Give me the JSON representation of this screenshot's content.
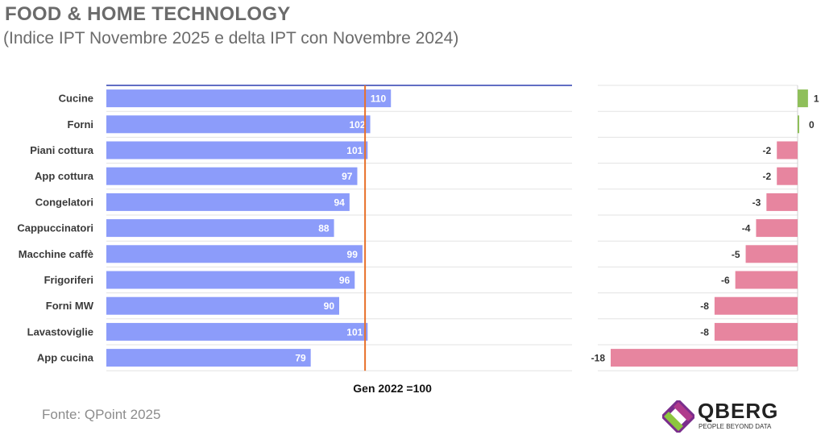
{
  "header": {
    "title": "FOOD & HOME TECHNOLOGY",
    "subtitle": "(Indice IPT Novembre 2025 e delta IPT con Novembre 2024)"
  },
  "footer": {
    "source": "Fonte: QPoint 2025"
  },
  "logo": {
    "name": "QBERG",
    "tagline": "PEOPLE BEYOND DATA"
  },
  "chart_data": [
    {
      "type": "bar",
      "orientation": "horizontal",
      "categories": [
        "Cucine",
        "Forni",
        "Piani cottura",
        "App cottura",
        "Congelatori",
        "Cappuccinatori",
        "Macchine caffè",
        "Frigoriferi",
        "Forni MW",
        "Lavastoviglie",
        "App cucina"
      ],
      "values": [
        110,
        102,
        101,
        97,
        94,
        88,
        99,
        96,
        90,
        101,
        79
      ],
      "reference_line": {
        "value": 100,
        "label": "Gen 2022 =100",
        "color": "#e8702a"
      },
      "xlim": [
        0,
        180
      ],
      "bar_color": "#8c9cfa",
      "data_labels": true,
      "gridlines": true
    },
    {
      "type": "bar",
      "orientation": "horizontal",
      "categories": [
        "Cucine",
        "Forni",
        "Piani cottura",
        "App cottura",
        "Congelatori",
        "Cappuccinatori",
        "Macchine caffè",
        "Frigoriferi",
        "Forni MW",
        "Lavastoviglie",
        "App cucina"
      ],
      "values": [
        1,
        0,
        -2,
        -2,
        -3,
        -4,
        -5,
        -6,
        -8,
        -8,
        -18
      ],
      "positive_color": "#8fbf5a",
      "negative_color": "#e7859f",
      "data_labels": true
    }
  ]
}
